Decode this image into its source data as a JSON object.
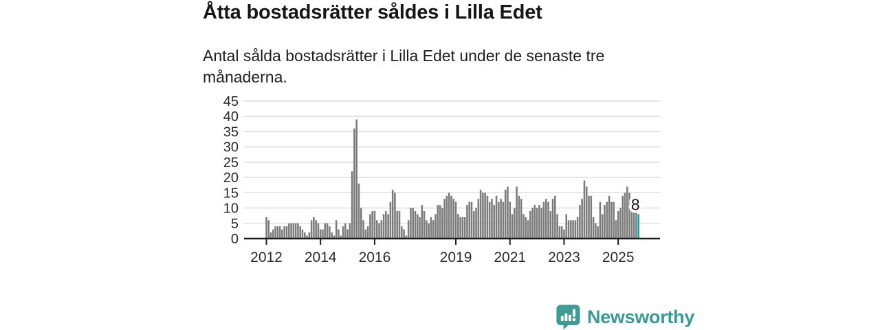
{
  "header": {
    "title": "Åtta bostadsrätter såldes i Lilla Edet",
    "subtitle": "Antal sålda bostadsrätter i Lilla Edet under de senaste tre månaderna."
  },
  "chart_data": {
    "type": "bar",
    "title": "Åtta bostadsrätter såldes i Lilla Edet",
    "description": "Antal sålda bostadsrätter i Lilla Edet under de senaste tre månaderna (rullande tremånaderssumma per månad).",
    "x_start_month": "2012-01",
    "x_end_month": "2025-10",
    "values": [
      7,
      6,
      2,
      3,
      4,
      4,
      4,
      3,
      4,
      4,
      5,
      5,
      5,
      5,
      5,
      4,
      3,
      2,
      1,
      2,
      6,
      7,
      6,
      5,
      3,
      3,
      5,
      5,
      4,
      2,
      1,
      6,
      3,
      1,
      4,
      5,
      3,
      5,
      22,
      36,
      39,
      18,
      10,
      6,
      3,
      4,
      8,
      9,
      9,
      6,
      5,
      6,
      8,
      9,
      8,
      12,
      16,
      15,
      9,
      9,
      4,
      3,
      1,
      6,
      10,
      10,
      9,
      8,
      7,
      11,
      9,
      6,
      5,
      7,
      6,
      8,
      11,
      11,
      10,
      13,
      14,
      15,
      14,
      13,
      12,
      8,
      7,
      7,
      7,
      11,
      12,
      12,
      9,
      10,
      13,
      16,
      15,
      15,
      14,
      12,
      13,
      11,
      14,
      12,
      13,
      12,
      16,
      17,
      12,
      8,
      10,
      17,
      14,
      13,
      8,
      7,
      6,
      9,
      10,
      11,
      10,
      11,
      10,
      12,
      13,
      12,
      9,
      13,
      14,
      8,
      4,
      4,
      3,
      8,
      6,
      6,
      6,
      6,
      7,
      11,
      13,
      19,
      17,
      14,
      14,
      7,
      5,
      4,
      12,
      8,
      11,
      12,
      14,
      12,
      12,
      6,
      9,
      10,
      14,
      15,
      17,
      15,
      13,
      10,
      12,
      8
    ],
    "highlight": {
      "index": 165,
      "value": 8,
      "label": "8",
      "color": "#10a29a"
    },
    "y_ticks": [
      0,
      5,
      10,
      15,
      20,
      25,
      30,
      35,
      40,
      45
    ],
    "ylim": [
      0,
      45
    ],
    "x_tick_labels": [
      "2012",
      "2014",
      "2016",
      "2019",
      "2021",
      "2023",
      "2025"
    ],
    "x_tick_month_indices": [
      0,
      24,
      48,
      84,
      108,
      132,
      156
    ],
    "grid": true,
    "legend": "none",
    "bar_color": "#7b7b7b",
    "gridline_color": "#dcdcdc",
    "axis_color": "#1c1c1c",
    "axis_label_color": "#2b2b2b"
  },
  "annotation": {
    "last_value_label": "8"
  },
  "branding": {
    "logo_text": "Newsworthy",
    "logo_color": "#3f9c94",
    "logo_icon": "speech-bubble-bar-chart"
  }
}
